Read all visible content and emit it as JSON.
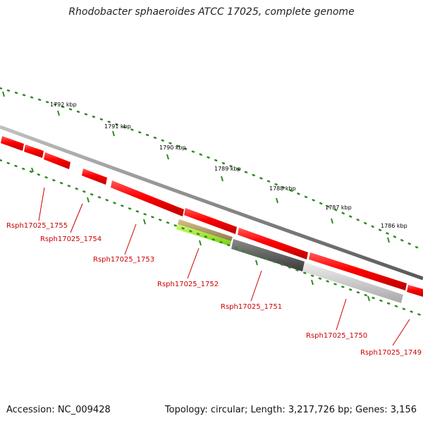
{
  "title": "Rhodobacter sphaeroides ATCC 17025, complete genome",
  "footer": {
    "accession": "Accession: NC_009428",
    "topology": "Topology: circular; Length: 3,217,726 bp; Genes: 3,156"
  },
  "ticks": [
    "1792 kbp",
    "1791 kbp",
    "1790 kbp",
    "1789 kbp",
    "1788 kbp",
    "1787 kbp",
    "1786 kbp"
  ],
  "genes": [
    {
      "label": "Rsph17025_1755",
      "color": "#ff0000"
    },
    {
      "label": "Rsph17025_1754",
      "color": "#ff0000"
    },
    {
      "label": "Rsph17025_1753",
      "color": "#ff0000"
    },
    {
      "label": "Rsph17025_1752",
      "color": "#b5a070",
      "second_color": "#99ee22"
    },
    {
      "label": "Rsph17025_1751",
      "color": "#555555"
    },
    {
      "label": "Rsph17025_1750",
      "color": "#c8c8c8"
    },
    {
      "label": "Rsph17025_1749",
      "color": "#ff0000"
    }
  ],
  "colors": {
    "backbone": "#8a8a8a",
    "ticks": "#2e8b20",
    "feature": "#ff0000",
    "label": "#cc0000"
  }
}
